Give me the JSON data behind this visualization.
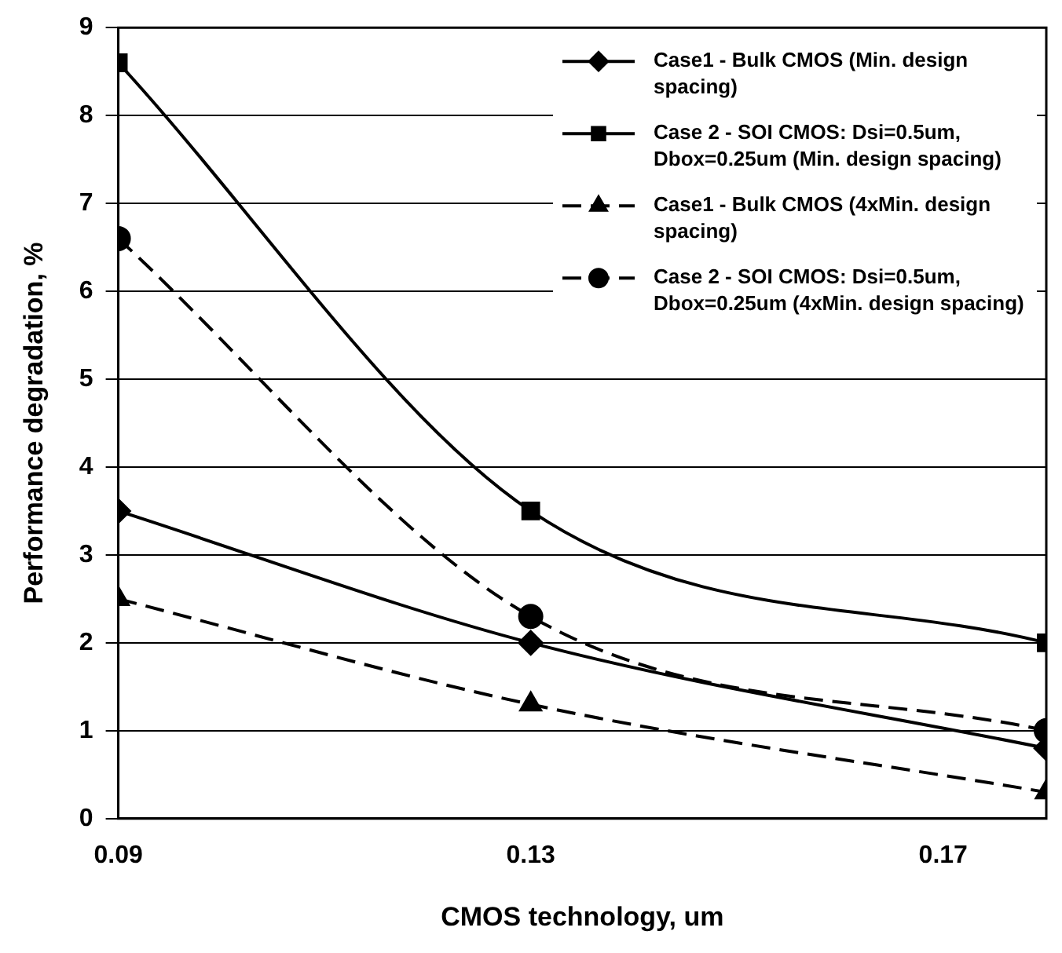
{
  "chart_data": {
    "type": "line",
    "xlabel": "CMOS technology, um",
    "ylabel": "Performance degradation, %",
    "x": [
      0.09,
      0.13,
      0.18
    ],
    "series": [
      {
        "name": "Case1 - Bulk CMOS (Min. design spacing)",
        "color": "#000000",
        "values": [
          3.5,
          2.0,
          0.8
        ],
        "marker": "diamond",
        "line_style": "solid"
      },
      {
        "name": "Case 2 - SOI CMOS: Dsi=0.5um, Dbox=0.25um (Min. design spacing)",
        "color": "#000000",
        "values": [
          8.6,
          3.5,
          2.0
        ],
        "marker": "square",
        "line_style": "solid"
      },
      {
        "name": "Case1 - Bulk CMOS (4xMin. design spacing)",
        "color": "#000000",
        "values": [
          2.5,
          1.3,
          0.3
        ],
        "marker": "triangle",
        "line_style": "dashed"
      },
      {
        "name": "Case 2 - SOI CMOS: Dsi=0.5um, Dbox=0.25um (4xMin. design spacing)",
        "color": "#000000",
        "values": [
          6.6,
          2.3,
          1.0
        ],
        "marker": "circle",
        "line_style": "dashed"
      }
    ],
    "xlim": [
      0.09,
      0.18
    ],
    "xticks": [
      0.09,
      0.13,
      0.17
    ],
    "ylim": [
      0,
      9
    ],
    "yticks": [
      0,
      1,
      2,
      3,
      4,
      5,
      6,
      7,
      8,
      9
    ],
    "grid": "y",
    "legend": "top right"
  }
}
